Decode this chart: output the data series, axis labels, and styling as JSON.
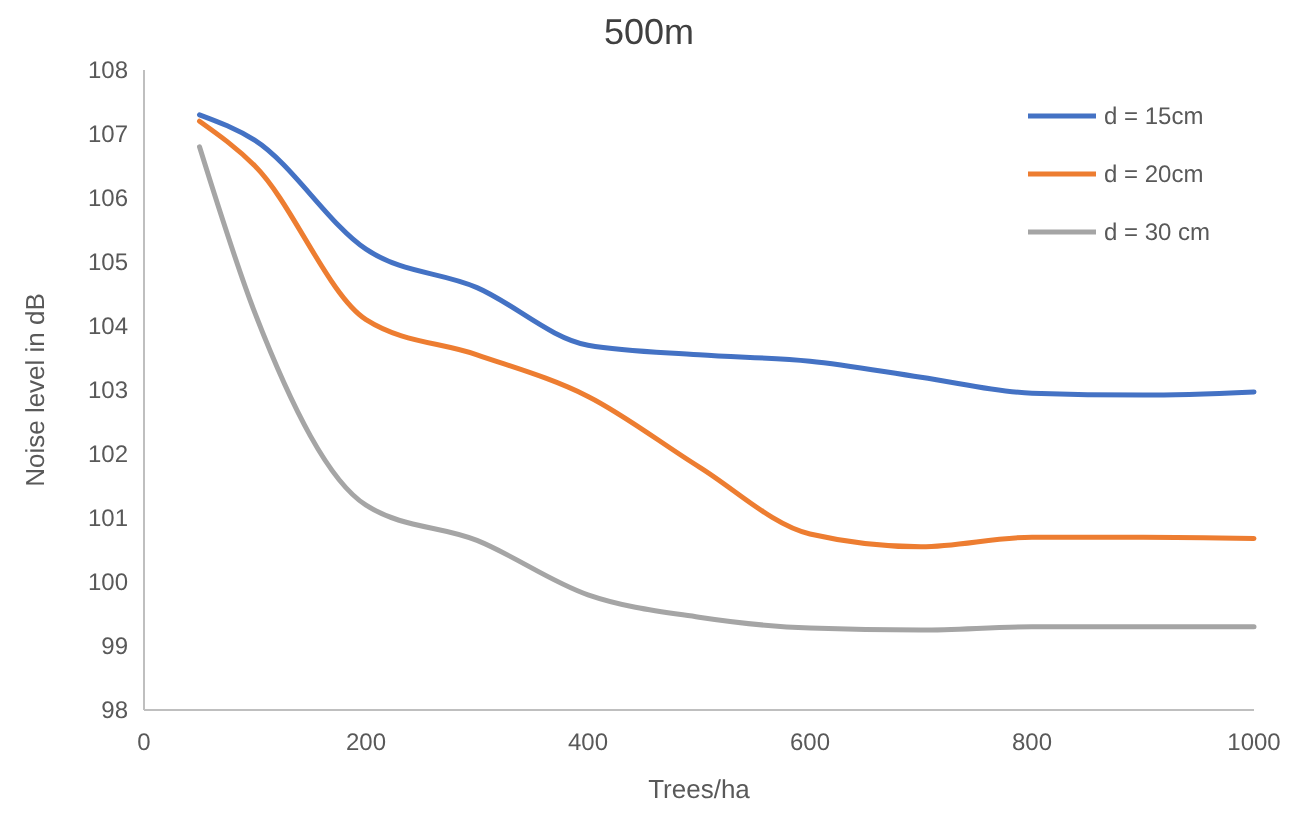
{
  "chart_data": {
    "type": "line",
    "title": "500m",
    "xlabel": "Trees/ha",
    "ylabel": "Noise level in dB",
    "x": [
      50,
      100,
      200,
      300,
      400,
      500,
      600,
      700,
      800,
      900,
      1000
    ],
    "series": [
      {
        "name": "d = 15cm",
        "color": "#4472c4",
        "values": [
          107.3,
          106.9,
          105.2,
          104.6,
          103.7,
          103.55,
          103.45,
          103.2,
          102.95,
          102.92,
          102.97
        ]
      },
      {
        "name": "d = 20cm",
        "color": "#ed7d31",
        "values": [
          107.2,
          106.5,
          104.1,
          103.55,
          102.9,
          101.8,
          100.75,
          100.55,
          100.7,
          100.7,
          100.68
        ]
      },
      {
        "name": "d = 30 cm",
        "color": "#a5a5a5",
        "values": [
          106.8,
          104.2,
          101.2,
          100.65,
          99.8,
          99.45,
          99.28,
          99.25,
          99.3,
          99.3,
          99.3
        ]
      }
    ],
    "xlim": [
      0,
      1000
    ],
    "xticks": [
      0,
      200,
      400,
      600,
      800,
      1000
    ],
    "ylim": [
      98,
      108
    ],
    "yticks": [
      98,
      99,
      100,
      101,
      102,
      103,
      104,
      105,
      106,
      107,
      108
    ],
    "grid": false,
    "legend": "top right",
    "marker": "none",
    "line_style": "solid"
  }
}
